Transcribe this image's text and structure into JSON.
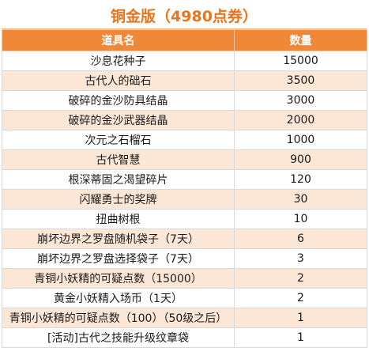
{
  "title": "铜金版（4980点券）",
  "columns": {
    "name": "道具名",
    "qty": "数量"
  },
  "rows": [
    {
      "name": "沙息花种子",
      "qty": "15000"
    },
    {
      "name": "古代人的础石",
      "qty": "3500"
    },
    {
      "name": "破碎的金沙防具结晶",
      "qty": "3000"
    },
    {
      "name": "破碎的金沙武器结晶",
      "qty": "2000"
    },
    {
      "name": "次元之石榴石",
      "qty": "1000"
    },
    {
      "name": "古代智慧",
      "qty": "900"
    },
    {
      "name": "根深蒂固之渴望碎片",
      "qty": "120"
    },
    {
      "name": "闪耀勇士的奖牌",
      "qty": "30"
    },
    {
      "name": "扭曲树根",
      "qty": "10"
    },
    {
      "name": "崩坏边界之罗盘随机袋子（7天）",
      "qty": "6"
    },
    {
      "name": "崩坏边界之罗盘选择袋子（7天）",
      "qty": "3"
    },
    {
      "name": "青铜小妖精的可疑点数（15000）",
      "qty": "2"
    },
    {
      "name": "黄金小妖精入场币（1天）",
      "qty": "2"
    },
    {
      "name": "青铜小妖精的可疑点数（100）（50级之后）",
      "qty": "1"
    },
    {
      "name": "[活动]古代之技能升级纹章袋",
      "qty": "1"
    }
  ]
}
